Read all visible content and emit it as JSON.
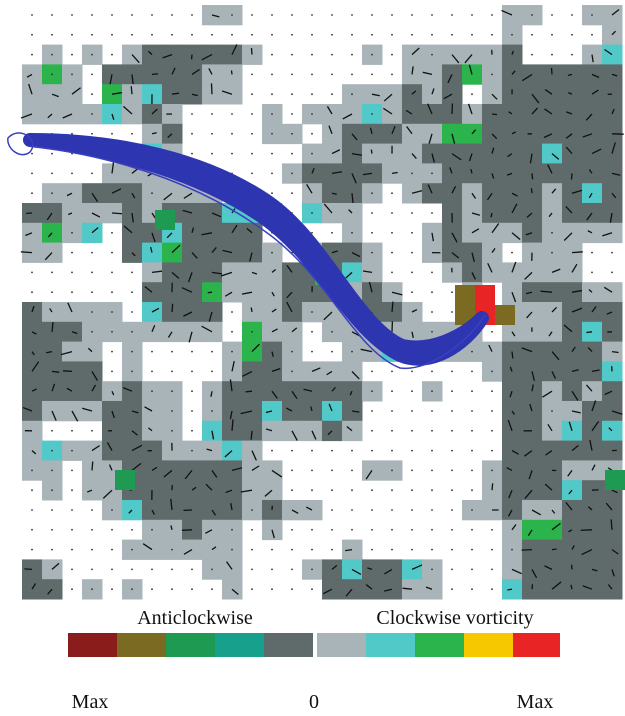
{
  "legend": {
    "left_title": "Anticlockwise",
    "right_title": "Clockwise vorticity",
    "left_end": "Max",
    "zero": "0",
    "right_end": "Max"
  }
}
